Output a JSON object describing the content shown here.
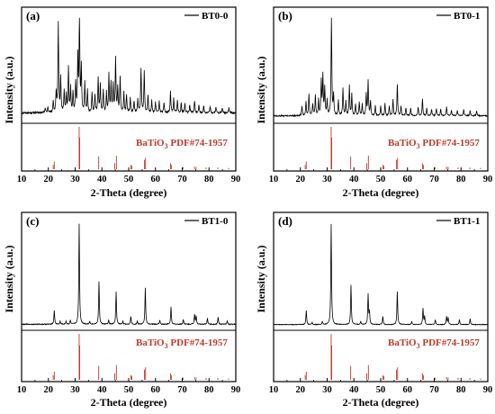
{
  "chart_data": [
    {
      "type": "line",
      "panel_label": "(a)",
      "series_name": "BT0-0",
      "reference_label": "BaTiO",
      "reference_sub": "3",
      "reference_rest": " PDF#74-1957",
      "xlabel": "2-Theta (degree)",
      "ylabel": "Intensity (a.u.)",
      "xlim": [
        10,
        90
      ],
      "xticks": [
        "10",
        "20",
        "30",
        "40",
        "50",
        "60",
        "70",
        "80",
        "90"
      ],
      "peaks": [
        [
          18.8,
          0.05
        ],
        [
          19.8,
          0.06
        ],
        [
          21.8,
          0.12
        ],
        [
          22.9,
          0.2
        ],
        [
          23.7,
          0.9
        ],
        [
          24.6,
          0.35
        ],
        [
          25.9,
          0.22
        ],
        [
          26.7,
          0.18
        ],
        [
          27.5,
          0.45
        ],
        [
          28.3,
          0.25
        ],
        [
          29.2,
          0.2
        ],
        [
          30.2,
          0.3
        ],
        [
          31.0,
          0.55
        ],
        [
          31.6,
          1.0
        ],
        [
          32.3,
          0.45
        ],
        [
          33.6,
          0.3
        ],
        [
          34.6,
          0.22
        ],
        [
          36.3,
          0.2
        ],
        [
          37.4,
          0.18
        ],
        [
          38.6,
          0.35
        ],
        [
          39.4,
          0.28
        ],
        [
          40.5,
          0.22
        ],
        [
          41.7,
          0.2
        ],
        [
          42.6,
          0.38
        ],
        [
          43.4,
          0.3
        ],
        [
          44.2,
          0.28
        ],
        [
          45.1,
          0.55
        ],
        [
          45.9,
          0.25
        ],
        [
          46.8,
          0.35
        ],
        [
          48.2,
          0.2
        ],
        [
          49.2,
          0.18
        ],
        [
          50.6,
          0.15
        ],
        [
          52.0,
          0.12
        ],
        [
          53.4,
          0.14
        ],
        [
          54.6,
          0.45
        ],
        [
          55.8,
          0.42
        ],
        [
          57.2,
          0.18
        ],
        [
          58.6,
          0.12
        ],
        [
          60.0,
          0.1
        ],
        [
          61.4,
          0.12
        ],
        [
          63.2,
          0.1
        ],
        [
          65.6,
          0.22
        ],
        [
          66.8,
          0.14
        ],
        [
          68.2,
          0.12
        ],
        [
          69.6,
          0.1
        ],
        [
          71.0,
          0.1
        ],
        [
          72.8,
          0.08
        ],
        [
          74.6,
          0.12
        ],
        [
          76.2,
          0.08
        ],
        [
          78.0,
          0.07
        ],
        [
          80.4,
          0.06
        ],
        [
          82.6,
          0.06
        ],
        [
          85.0,
          0.05
        ],
        [
          87.4,
          0.05
        ]
      ],
      "baseline": 0.06,
      "noise": 0.02
    },
    {
      "type": "line",
      "panel_label": "(b)",
      "series_name": "BT0-1",
      "reference_label": "BaTiO",
      "reference_sub": "3",
      "reference_rest": " PDF#74-1957",
      "xlabel": "2-Theta (degree)",
      "ylabel": "Intensity (a.u.)",
      "xlim": [
        10,
        90
      ],
      "xticks": [
        "10",
        "20",
        "30",
        "40",
        "50",
        "60",
        "70",
        "80",
        "90"
      ],
      "peaks": [
        [
          20.6,
          0.1
        ],
        [
          22.1,
          0.14
        ],
        [
          23.2,
          0.22
        ],
        [
          24.6,
          0.12
        ],
        [
          25.6,
          0.2
        ],
        [
          26.8,
          0.16
        ],
        [
          27.8,
          0.35
        ],
        [
          28.4,
          0.4
        ],
        [
          29.1,
          0.28
        ],
        [
          30.0,
          0.15
        ],
        [
          31.6,
          1.0
        ],
        [
          32.4,
          0.2
        ],
        [
          34.2,
          0.16
        ],
        [
          35.9,
          0.28
        ],
        [
          37.0,
          0.14
        ],
        [
          38.3,
          0.3
        ],
        [
          39.2,
          0.22
        ],
        [
          40.6,
          0.12
        ],
        [
          42.0,
          0.14
        ],
        [
          43.1,
          0.12
        ],
        [
          44.6,
          0.22
        ],
        [
          45.3,
          0.35
        ],
        [
          46.2,
          0.15
        ],
        [
          48.0,
          0.1
        ],
        [
          50.0,
          0.1
        ],
        [
          51.6,
          0.12
        ],
        [
          53.2,
          0.1
        ],
        [
          54.6,
          0.16
        ],
        [
          56.2,
          0.32
        ],
        [
          57.6,
          0.1
        ],
        [
          59.4,
          0.08
        ],
        [
          61.2,
          0.08
        ],
        [
          64.0,
          0.08
        ],
        [
          65.6,
          0.17
        ],
        [
          67.2,
          0.08
        ],
        [
          69.0,
          0.07
        ],
        [
          70.8,
          0.07
        ],
        [
          72.4,
          0.07
        ],
        [
          74.6,
          0.09
        ],
        [
          76.4,
          0.06
        ],
        [
          78.6,
          0.06
        ],
        [
          81.0,
          0.06
        ],
        [
          83.4,
          0.05
        ],
        [
          85.8,
          0.05
        ]
      ],
      "baseline": 0.03,
      "noise": 0.012
    },
    {
      "type": "line",
      "panel_label": "(c)",
      "series_name": "BT1-0",
      "reference_label": "BaTiO",
      "reference_sub": "3",
      "reference_rest": " PDF#74-1957",
      "xlabel": "2-Theta (degree)",
      "ylabel": "Intensity (a.u.)",
      "xlim": [
        10,
        90
      ],
      "xticks": [
        "10",
        "20",
        "30",
        "40",
        "50",
        "60",
        "70",
        "80",
        "90"
      ],
      "peaks": [
        [
          22.2,
          0.14
        ],
        [
          24.4,
          0.03
        ],
        [
          26.6,
          0.03
        ],
        [
          28.2,
          0.04
        ],
        [
          31.5,
          1.0
        ],
        [
          35.4,
          0.03
        ],
        [
          38.9,
          0.42
        ],
        [
          42.5,
          0.04
        ],
        [
          45.3,
          0.32
        ],
        [
          47.8,
          0.03
        ],
        [
          50.8,
          0.08
        ],
        [
          53.2,
          0.03
        ],
        [
          56.2,
          0.36
        ],
        [
          61.6,
          0.04
        ],
        [
          65.8,
          0.17
        ],
        [
          70.4,
          0.05
        ],
        [
          74.6,
          0.1
        ],
        [
          75.2,
          0.08
        ],
        [
          79.4,
          0.06
        ],
        [
          83.4,
          0.07
        ],
        [
          86.8,
          0.03
        ]
      ],
      "baseline": 0.015,
      "noise": 0.008
    },
    {
      "type": "line",
      "panel_label": "(d)",
      "series_name": "BT1-1",
      "reference_label": "BaTiO",
      "reference_sub": "3",
      "reference_rest": " PDF#74-1957",
      "xlabel": "2-Theta (degree)",
      "ylabel": "Intensity (a.u.)",
      "xlim": [
        10,
        90
      ],
      "xticks": [
        "10",
        "20",
        "30",
        "40",
        "50",
        "60",
        "70",
        "80",
        "90"
      ],
      "peaks": [
        [
          22.2,
          0.14
        ],
        [
          24.4,
          0.02
        ],
        [
          28.2,
          0.03
        ],
        [
          31.5,
          1.0
        ],
        [
          38.9,
          0.39
        ],
        [
          42.5,
          0.03
        ],
        [
          45.3,
          0.3
        ],
        [
          45.8,
          0.12
        ],
        [
          50.8,
          0.08
        ],
        [
          56.2,
          0.33
        ],
        [
          61.6,
          0.03
        ],
        [
          65.8,
          0.16
        ],
        [
          66.4,
          0.08
        ],
        [
          70.4,
          0.05
        ],
        [
          74.6,
          0.08
        ],
        [
          75.2,
          0.07
        ],
        [
          79.4,
          0.05
        ],
        [
          83.4,
          0.06
        ]
      ],
      "baseline": 0.012,
      "noise": 0.006
    }
  ],
  "reference_pattern": [
    [
      21.8,
      0.1
    ],
    [
      22.2,
      0.18
    ],
    [
      31.5,
      1.0
    ],
    [
      31.7,
      0.75
    ],
    [
      38.8,
      0.3
    ],
    [
      44.8,
      0.14
    ],
    [
      45.4,
      0.32
    ],
    [
      50.8,
      0.1
    ],
    [
      51.2,
      0.08
    ],
    [
      55.9,
      0.22
    ],
    [
      56.3,
      0.27
    ],
    [
      65.6,
      0.14
    ],
    [
      66.0,
      0.1
    ],
    [
      70.3,
      0.05
    ],
    [
      74.6,
      0.06
    ],
    [
      75.2,
      0.05
    ],
    [
      78.9,
      0.04
    ],
    [
      83.3,
      0.04
    ],
    [
      87.3,
      0.03
    ]
  ],
  "colors": {
    "pattern_line": "#000000",
    "reference": "#c0392b",
    "reference_text": "#c0392b"
  }
}
